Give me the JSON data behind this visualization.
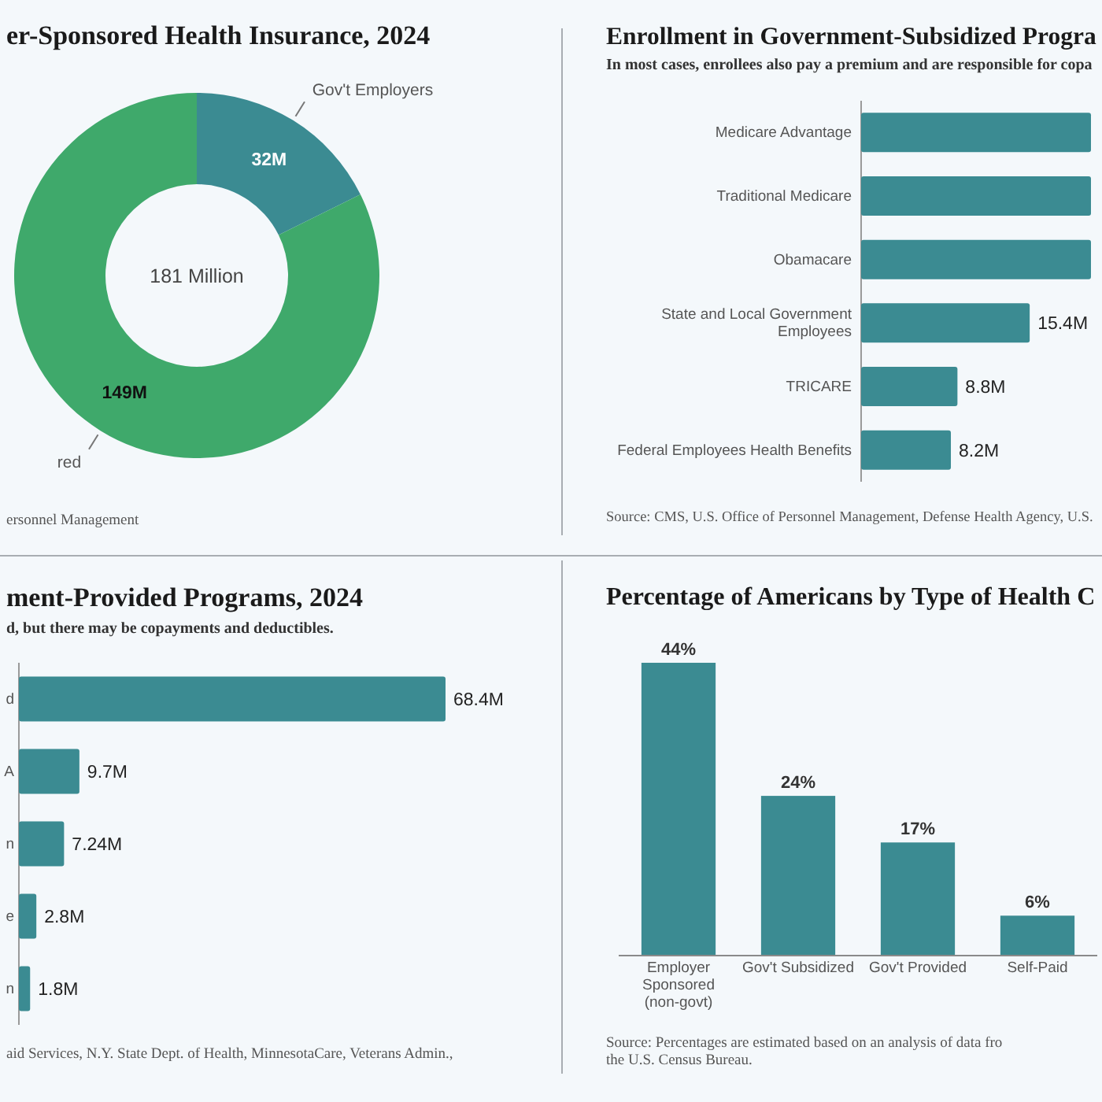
{
  "chart_data": [
    {
      "type": "donut",
      "title": "er-Sponsored Health Insurance, 2024",
      "categories": [
        "Gov't Employers",
        "red"
      ],
      "values": [
        32,
        149
      ],
      "colors": [
        "#3b8b92",
        "#3fa96b"
      ],
      "value_labels": [
        "32M",
        "149M"
      ],
      "annotations": [
        "181 Million",
        "ersonnel Management"
      ]
    },
    {
      "type": "bar",
      "orientation": "horizontal",
      "title": "Enrollment in Government-Subsidized Progra",
      "subtitle": "In most cases, enrollees also pay a premium and are responsible for copa",
      "categories": [
        "Medicare Advantage",
        "Traditional Medicare",
        "Obamacare",
        "State and Local Government Employees",
        "TRICARE",
        "Federal Employees Health Benefits"
      ],
      "values": [
        21,
        21,
        21,
        15.4,
        8.8,
        8.2
      ],
      "value_labels": [
        null,
        null,
        null,
        "15.4M",
        "8.8M",
        "8.2M"
      ],
      "color": "#3b8b92",
      "annotations": [
        "Source: CMS, U.S. Office of Personnel Management, Defense Health Agency, U.S."
      ]
    },
    {
      "type": "bar",
      "orientation": "horizontal",
      "title": "ment-Provided Programs, 2024",
      "subtitle": "d, but there may be copayments and deductibles.",
      "categories": [
        "d",
        "A",
        "n",
        "e",
        "n"
      ],
      "values": [
        68.4,
        9.7,
        7.24,
        2.8,
        1.8
      ],
      "value_labels": [
        "68.4M",
        "9.7M",
        "7.24M",
        "2.8M",
        "1.8M"
      ],
      "color": "#3b8b92",
      "annotations": [
        "aid Services, N.Y. State Dept. of Health, MinnesotaCare, Veterans Admin.,"
      ]
    },
    {
      "type": "bar",
      "title": "Percentage of Americans by Type of Health C",
      "categories": [
        "Employer Sponsored (non-govt)",
        "Gov't Subsidized",
        "Gov't Provided",
        "Self-Paid"
      ],
      "values": [
        44,
        24,
        17,
        6
      ],
      "value_labels": [
        "44%",
        "24%",
        "17%",
        "6%"
      ],
      "color": "#3b8b92",
      "annotations": [
        "Source: Percentages are estimated based on an analysis of data fro",
        "the U.S. Census Bureau."
      ]
    }
  ]
}
